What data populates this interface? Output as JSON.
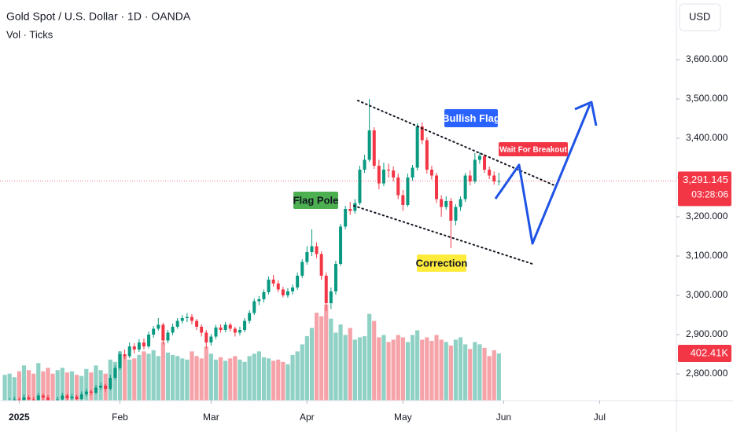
{
  "chart_data": {
    "type": "candlestick",
    "title": "Gold Spot / U.S. Dollar · 1D · OANDA",
    "subtitle": "Vol · Ticks",
    "currency": "USD",
    "up_color": "#089981",
    "down_color": "#f23645",
    "volume_up_color": "#8fd1c5",
    "volume_down_color": "#f5a3a9",
    "xlim": [
      -1,
      140
    ],
    "xticks": [
      {
        "value": 3,
        "label": "2025"
      },
      {
        "value": 24,
        "label": "Feb"
      },
      {
        "value": 43,
        "label": "Mar"
      },
      {
        "value": 63,
        "label": "Apr"
      },
      {
        "value": 83,
        "label": "May"
      },
      {
        "value": 104,
        "label": "Jun"
      },
      {
        "value": 124,
        "label": "Jul"
      }
    ],
    "ylim": [
      2732,
      3752
    ],
    "yticks": [
      {
        "value": 2800,
        "label": "2,800.000"
      },
      {
        "value": 2900,
        "label": "2,900.000"
      },
      {
        "value": 3000,
        "label": "3,000.000"
      },
      {
        "value": 3100,
        "label": "3,100.000"
      },
      {
        "value": 3200,
        "label": "3,200.000"
      },
      {
        "value": 3300,
        "label": "3,300.000"
      },
      {
        "value": 3400,
        "label": "3,400.000"
      },
      {
        "value": 3500,
        "label": "3,500.000"
      },
      {
        "value": 3600,
        "label": "3,600.000"
      }
    ],
    "volume_lim": [
      0,
      3420
    ],
    "price_label": {
      "value": 3291.145,
      "label": "3,291.145"
    },
    "countdown": "03:28:06",
    "volume_label": {
      "value": 402.41,
      "label": "402.41K"
    },
    "annotations": [
      "Flag Pole",
      "Bullish Flag",
      "Wait For Breakout",
      "Correction"
    ],
    "ohlc": [
      [
        2715,
        2728,
        2708,
        2720
      ],
      [
        2720,
        2738,
        2714,
        2730
      ],
      [
        2730,
        2742,
        2724,
        2735
      ],
      [
        2735,
        2740,
        2718,
        2725
      ],
      [
        2725,
        2748,
        2720,
        2740
      ],
      [
        2740,
        2746,
        2728,
        2735
      ],
      [
        2735,
        2741,
        2722,
        2730
      ],
      [
        2730,
        2752,
        2726,
        2745
      ],
      [
        2745,
        2750,
        2733,
        2740
      ],
      [
        2740,
        2746,
        2720,
        2728
      ],
      [
        2728,
        2734,
        2714,
        2722
      ],
      [
        2722,
        2742,
        2718,
        2735
      ],
      [
        2735,
        2752,
        2730,
        2745
      ],
      [
        2745,
        2750,
        2731,
        2738
      ],
      [
        2738,
        2749,
        2732,
        2742
      ],
      [
        2742,
        2747,
        2729,
        2736
      ],
      [
        2736,
        2755,
        2732,
        2748
      ],
      [
        2748,
        2762,
        2743,
        2755
      ],
      [
        2755,
        2760,
        2745,
        2752
      ],
      [
        2752,
        2772,
        2748,
        2765
      ],
      [
        2765,
        2778,
        2760,
        2770
      ],
      [
        2770,
        2775,
        2755,
        2762
      ],
      [
        2762,
        2798,
        2758,
        2790
      ],
      [
        2790,
        2822,
        2785,
        2815
      ],
      [
        2815,
        2858,
        2810,
        2850
      ],
      [
        2850,
        2862,
        2838,
        2845
      ],
      [
        2845,
        2880,
        2840,
        2870
      ],
      [
        2870,
        2878,
        2852,
        2862
      ],
      [
        2862,
        2888,
        2856,
        2880
      ],
      [
        2880,
        2890,
        2862,
        2870
      ],
      [
        2870,
        2908,
        2865,
        2900
      ],
      [
        2900,
        2922,
        2892,
        2915
      ],
      [
        2915,
        2942,
        2910,
        2925
      ],
      [
        2925,
        2930,
        2875,
        2885
      ],
      [
        2885,
        2912,
        2878,
        2905
      ],
      [
        2905,
        2928,
        2898,
        2920
      ],
      [
        2920,
        2942,
        2915,
        2935
      ],
      [
        2935,
        2950,
        2928,
        2942
      ],
      [
        2942,
        2955,
        2932,
        2945
      ],
      [
        2945,
        2952,
        2926,
        2935
      ],
      [
        2935,
        2940,
        2912,
        2920
      ],
      [
        2920,
        2926,
        2895,
        2905
      ],
      [
        2905,
        2912,
        2865,
        2880
      ],
      [
        2880,
        2902,
        2872,
        2895
      ],
      [
        2895,
        2925,
        2888,
        2918
      ],
      [
        2918,
        2926,
        2905,
        2912
      ],
      [
        2912,
        2932,
        2906,
        2925
      ],
      [
        2925,
        2930,
        2908,
        2915
      ],
      [
        2915,
        2920,
        2895,
        2905
      ],
      [
        2905,
        2920,
        2898,
        2912
      ],
      [
        2912,
        2942,
        2906,
        2935
      ],
      [
        2935,
        2962,
        2928,
        2955
      ],
      [
        2955,
        2992,
        2950,
        2985
      ],
      [
        2985,
        2998,
        2975,
        2990
      ],
      [
        2990,
        3015,
        2982,
        3008
      ],
      [
        3008,
        3048,
        3002,
        3040
      ],
      [
        3040,
        3052,
        3022,
        3030
      ],
      [
        3030,
        3038,
        3008,
        3015
      ],
      [
        3015,
        3022,
        2995,
        3000
      ],
      [
        3000,
        3018,
        2994,
        3010
      ],
      [
        3010,
        3028,
        3002,
        3020
      ],
      [
        3020,
        3058,
        3014,
        3050
      ],
      [
        3050,
        3092,
        3044,
        3085
      ],
      [
        3085,
        3125,
        3078,
        3110
      ],
      [
        3110,
        3168,
        3100,
        3125
      ],
      [
        3125,
        3135,
        3095,
        3105
      ],
      [
        3105,
        3112,
        3040,
        3050
      ],
      [
        3050,
        3058,
        2960,
        2980
      ],
      [
        2980,
        3020,
        2965,
        3010
      ],
      [
        3010,
        3088,
        3002,
        3080
      ],
      [
        3080,
        3182,
        3075,
        3175
      ],
      [
        3175,
        3228,
        3168,
        3220
      ],
      [
        3220,
        3238,
        3205,
        3215
      ],
      [
        3215,
        3245,
        3208,
        3235
      ],
      [
        3235,
        3330,
        3230,
        3320
      ],
      [
        3320,
        3358,
        3312,
        3345
      ],
      [
        3345,
        3500,
        3340,
        3420
      ],
      [
        3420,
        3428,
        3322,
        3330
      ],
      [
        3330,
        3345,
        3270,
        3285
      ],
      [
        3285,
        3338,
        3278,
        3320
      ],
      [
        3320,
        3335,
        3300,
        3318
      ],
      [
        3318,
        3328,
        3290,
        3300
      ],
      [
        3300,
        3310,
        3245,
        3255
      ],
      [
        3255,
        3268,
        3215,
        3230
      ],
      [
        3230,
        3310,
        3225,
        3300
      ],
      [
        3300,
        3332,
        3292,
        3325
      ],
      [
        3325,
        3438,
        3318,
        3430
      ],
      [
        3430,
        3440,
        3385,
        3395
      ],
      [
        3395,
        3402,
        3310,
        3320
      ],
      [
        3320,
        3330,
        3295,
        3305
      ],
      [
        3305,
        3312,
        3235,
        3245
      ],
      [
        3245,
        3255,
        3200,
        3225
      ],
      [
        3225,
        3252,
        3218,
        3240
      ],
      [
        3240,
        3248,
        3120,
        3190
      ],
      [
        3190,
        3232,
        3178,
        3225
      ],
      [
        3225,
        3252,
        3215,
        3245
      ],
      [
        3245,
        3312,
        3238,
        3305
      ],
      [
        3305,
        3318,
        3280,
        3290
      ],
      [
        3290,
        3362,
        3285,
        3345
      ],
      [
        3345,
        3365,
        3335,
        3355
      ],
      [
        3355,
        3360,
        3312,
        3320
      ],
      [
        3320,
        3328,
        3296,
        3305
      ],
      [
        3305,
        3315,
        3282,
        3290
      ],
      [
        3290,
        3312,
        3280,
        3291.145
      ]
    ],
    "volume": [
      220,
      230,
      200,
      250,
      300,
      260,
      230,
      320,
      250,
      280,
      230,
      260,
      280,
      240,
      250,
      220,
      210,
      270,
      240,
      300,
      260,
      230,
      350,
      330,
      420,
      380,
      350,
      360,
      390,
      420,
      400,
      430,
      380,
      500,
      410,
      390,
      380,
      360,
      350,
      420,
      380,
      360,
      460,
      400,
      350,
      370,
      340,
      360,
      380,
      350,
      330,
      380,
      400,
      420,
      370,
      360,
      340,
      350,
      330,
      310,
      390,
      420,
      480,
      550,
      620,
      750,
      720,
      820,
      700,
      580,
      650,
      560,
      620,
      520,
      540,
      550,
      740,
      680,
      540,
      560,
      500,
      520,
      560,
      540,
      500,
      560,
      600,
      520,
      540,
      510,
      560,
      520,
      500,
      470,
      520,
      540,
      480,
      440,
      500,
      480,
      450,
      380,
      430,
      402.41
    ]
  }
}
